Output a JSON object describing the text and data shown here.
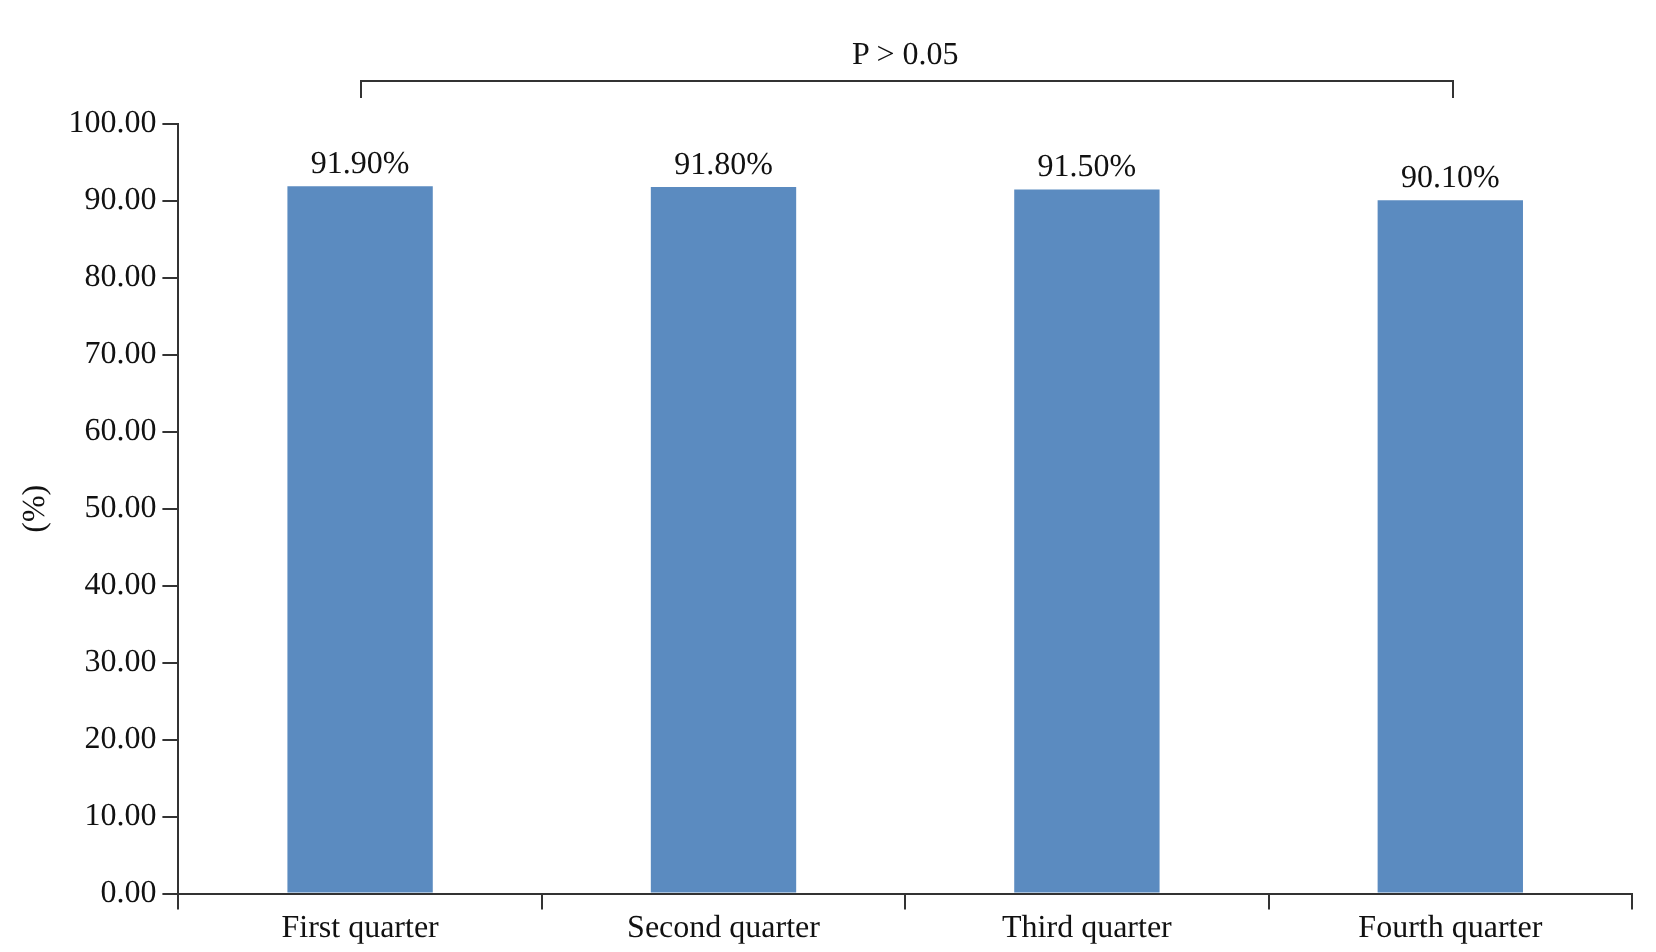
{
  "chart_data": {
    "type": "bar",
    "ylabel": "(%)",
    "categories": [
      "First quarter",
      "Second quarter",
      "Third quarter",
      "Fourth quarter"
    ],
    "values": [
      91.9,
      91.8,
      91.5,
      90.1
    ],
    "value_labels": [
      "91.90%",
      "91.80%",
      "91.50%",
      "90.10%"
    ],
    "color": "#5b8bc0",
    "ylim": [
      0,
      100
    ],
    "yticks": [
      {
        "value": 0,
        "label": "0.00"
      },
      {
        "value": 10,
        "label": "10.00"
      },
      {
        "value": 20,
        "label": "20.00"
      },
      {
        "value": 30,
        "label": "30.00"
      },
      {
        "value": 40,
        "label": "40.00"
      },
      {
        "value": 50,
        "label": "50.00"
      },
      {
        "value": 60,
        "label": "60.00"
      },
      {
        "value": 70,
        "label": "70.00"
      },
      {
        "value": 80,
        "label": "80.00"
      },
      {
        "value": 90,
        "label": "90.00"
      },
      {
        "value": 100,
        "label": "100.00"
      }
    ],
    "annotations": [
      "P > 0.05"
    ],
    "grid": false,
    "legend": false
  }
}
